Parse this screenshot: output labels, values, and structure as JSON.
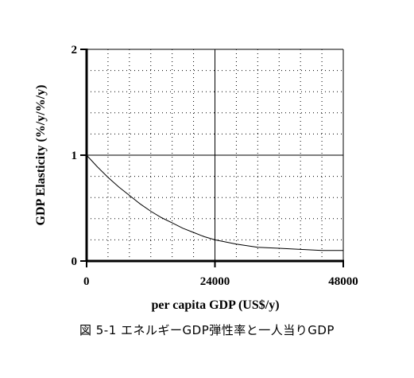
{
  "chart_data": {
    "type": "line",
    "title": "",
    "xlabel": "per capita GDP (US$/y)",
    "ylabel": "GDP Elasticity (%/y/%/y)",
    "xlim": [
      0,
      48000
    ],
    "ylim": [
      0,
      2
    ],
    "x_ticks": [
      "0",
      "24000",
      "48000"
    ],
    "y_ticks": [
      "0",
      "1",
      "2"
    ],
    "grid": true,
    "reference_line": {
      "y": 1
    },
    "series": [
      {
        "x": [
          0,
          2000,
          4000,
          6000,
          8000,
          10000,
          12000,
          14000,
          16000,
          18000,
          20000,
          22000,
          24000,
          28000,
          32000,
          36000,
          40000,
          44000,
          48000
        ],
        "y": [
          1.0,
          0.89,
          0.79,
          0.7,
          0.62,
          0.54,
          0.47,
          0.41,
          0.36,
          0.31,
          0.27,
          0.23,
          0.2,
          0.16,
          0.13,
          0.12,
          0.11,
          0.1,
          0.1
        ]
      }
    ]
  },
  "caption": "図 5-1  エネルギーGDP弾性率と一人当りGDP"
}
